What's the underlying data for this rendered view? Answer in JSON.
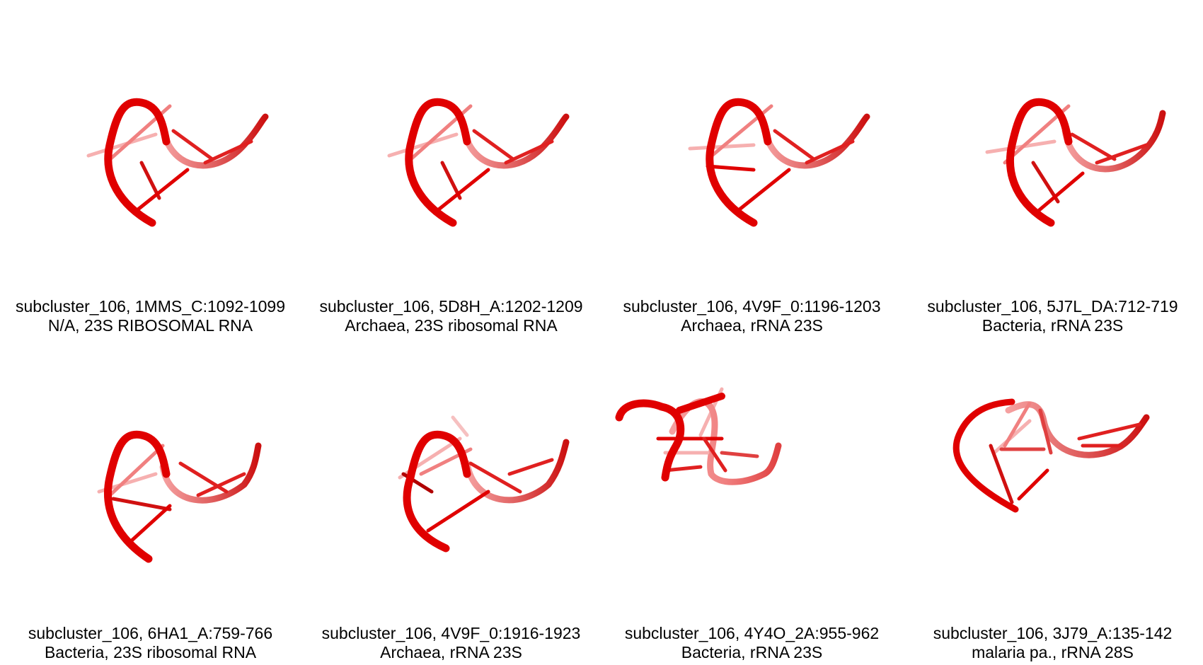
{
  "panels": [
    {
      "line1": "subcluster_106, 1MMS_C:1092-1099",
      "line2": "N/A, 23S RIBOSOMAL RNA"
    },
    {
      "line1": "subcluster_106, 5D8H_A:1202-1209",
      "line2": "Archaea, 23S ribosomal RNA"
    },
    {
      "line1": "subcluster_106, 4V9F_0:1196-1203",
      "line2": "Archaea, rRNA 23S"
    },
    {
      "line1": "subcluster_106, 5J7L_DA:712-719",
      "line2": "Bacteria, rRNA 23S"
    },
    {
      "line1": "subcluster_106, 6HA1_A:759-766",
      "line2": "Bacteria, 23S ribosomal RNA"
    },
    {
      "line1": "subcluster_106, 4V9F_0:1916-1923",
      "line2": "Archaea, rRNA 23S"
    },
    {
      "line1": "subcluster_106, 4Y4O_2A:955-962",
      "line2": "Bacteria, rRNA 23S"
    },
    {
      "line1": "subcluster_106, 3J79_A:135-142",
      "line2": "malaria pa., rRNA 28S"
    }
  ],
  "colors": {
    "backbone": "#e00000",
    "backbone_dark": "#b00000",
    "backbone_light": "#f08080"
  }
}
